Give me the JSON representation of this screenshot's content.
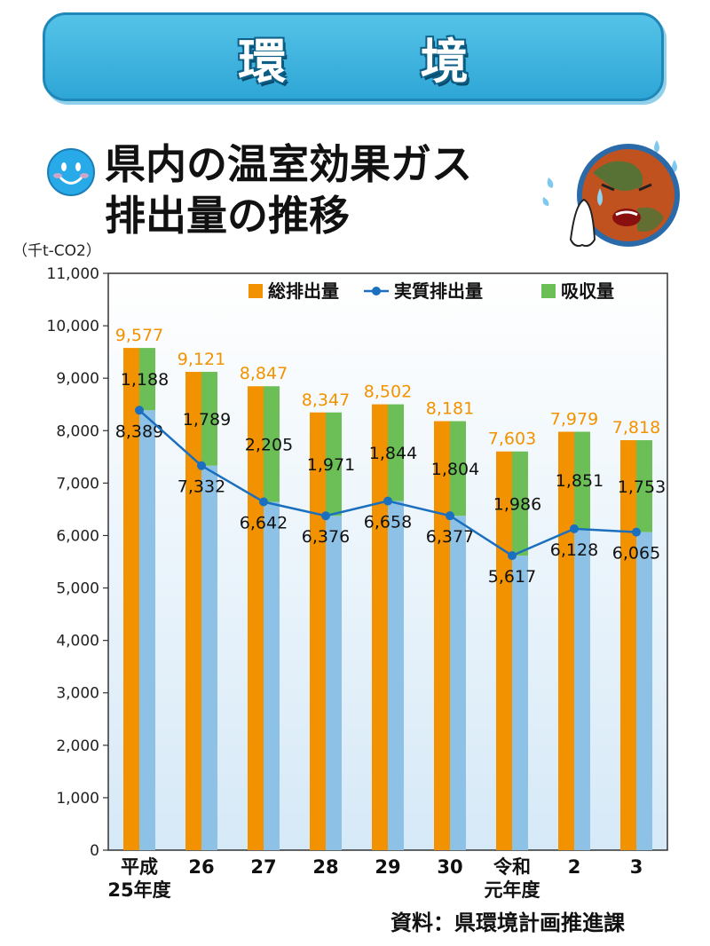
{
  "banner": {
    "title": "環　境"
  },
  "heading": {
    "line1": "県内の温室効果ガス",
    "line2": "排出量の推移"
  },
  "unit_label": "（千t-CO2）",
  "source": "資料：県環境計画推進課",
  "colors": {
    "total": "#f39200",
    "net": "#8ec1e6",
    "absorbed": "#6cbf57",
    "line": "#1b6fbf",
    "total_label": "#f39200",
    "plot_bg_top": "#ffffff",
    "plot_bg_bottom": "#d6e9f7",
    "banner": "#3ab4e0"
  },
  "icons": {
    "face": "smiley-face-icon",
    "earth": "crying-earth-icon"
  },
  "chart_data": {
    "type": "bar",
    "categories": [
      "平成25年度",
      "26",
      "27",
      "28",
      "29",
      "30",
      "令和元年度",
      "2",
      "3"
    ],
    "category_lines": [
      [
        "平成",
        "25年度"
      ],
      [
        "26"
      ],
      [
        "27"
      ],
      [
        "28"
      ],
      [
        "29"
      ],
      [
        "30"
      ],
      [
        "令和",
        "元年度"
      ],
      [
        "2"
      ],
      [
        "3"
      ]
    ],
    "series": [
      {
        "name": "総排出量",
        "values": [
          9577,
          9121,
          8847,
          8347,
          8502,
          8181,
          7603,
          7979,
          7818
        ]
      },
      {
        "name": "実質排出量",
        "values": [
          8389,
          7332,
          6642,
          6376,
          6658,
          6377,
          5617,
          6128,
          6065
        ]
      },
      {
        "name": "吸収量",
        "values": [
          1188,
          1789,
          2205,
          1971,
          1844,
          1804,
          1986,
          1851,
          1753
        ]
      }
    ],
    "total_labels": [
      "9,577",
      "9,121",
      "8,847",
      "8,347",
      "8,502",
      "8,181",
      "7,603",
      "7,979",
      "7,818"
    ],
    "net_labels": [
      "8,389",
      "7,332",
      "6,642",
      "6,376",
      "6,658",
      "6,377",
      "5,617",
      "6,128",
      "6,065"
    ],
    "absorbed_labels": [
      "1,188",
      "1,789",
      "2,205",
      "1,971",
      "1,844",
      "1,804",
      "1,986",
      "1,851",
      "1,753"
    ],
    "y_ticks": [
      0,
      1000,
      2000,
      3000,
      4000,
      5000,
      6000,
      7000,
      8000,
      9000,
      10000,
      11000
    ],
    "y_tick_labels": [
      "0",
      "1,000",
      "2,000",
      "3,000",
      "4,000",
      "5,000",
      "6,000",
      "7,000",
      "8,000",
      "9,000",
      "10,000",
      "11,000"
    ],
    "ylim": [
      0,
      11000
    ],
    "legend": [
      "総排出量",
      "実質排出量",
      "吸収量"
    ],
    "legend_position": "top-right",
    "grid": false
  }
}
